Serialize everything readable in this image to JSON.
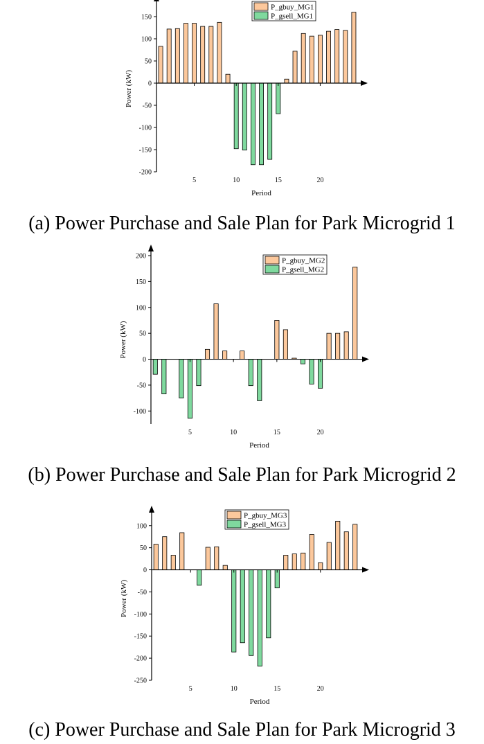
{
  "colors": {
    "buy": "#fcc89c",
    "sell": "#7fd99e",
    "stroke": "#000000"
  },
  "chart_data": [
    {
      "type": "bar",
      "caption": "(a) Power Purchase and Sale Plan for Park Microgrid 1",
      "xlabel": "Period",
      "ylabel": "Power (kW)",
      "xlim": [
        0.5,
        24.5
      ],
      "ylim": [
        -200,
        175
      ],
      "yticks": [
        150,
        100,
        50,
        0,
        -50,
        -100,
        -150,
        -200
      ],
      "xticks": [
        5,
        10,
        15,
        20
      ],
      "legend_position": "top-right",
      "x": [
        1,
        2,
        3,
        4,
        5,
        6,
        7,
        8,
        9,
        10,
        11,
        12,
        13,
        14,
        15,
        16,
        17,
        18,
        19,
        20,
        21,
        22,
        23,
        24
      ],
      "series": [
        {
          "name": "P_gbuy_MG1",
          "values": [
            83,
            122,
            123,
            135,
            135,
            128,
            128,
            137,
            20,
            0,
            0,
            0,
            0,
            0,
            0,
            9,
            72,
            112,
            106,
            108,
            117,
            121,
            119,
            160
          ]
        },
        {
          "name": "P_gsell_MG1",
          "values": [
            0,
            0,
            0,
            0,
            0,
            0,
            0,
            0,
            0,
            -148,
            -151,
            -184,
            -184,
            -172,
            -69,
            0,
            0,
            0,
            0,
            0,
            0,
            0,
            0,
            0
          ]
        }
      ]
    },
    {
      "type": "bar",
      "caption": "(b) Power Purchase and Sale Plan for Park Microgrid 2",
      "xlabel": "Period",
      "ylabel": "Power (kW)",
      "xlim": [
        0.5,
        24.5
      ],
      "ylim": [
        -125,
        200
      ],
      "yticks": [
        200,
        150,
        100,
        50,
        0,
        -50,
        -100
      ],
      "xticks": [
        5,
        10,
        15,
        20
      ],
      "legend_position": "top-right",
      "x": [
        1,
        2,
        3,
        4,
        5,
        6,
        7,
        8,
        9,
        10,
        11,
        12,
        13,
        14,
        15,
        16,
        17,
        18,
        19,
        20,
        21,
        22,
        23,
        24
      ],
      "series": [
        {
          "name": "P_gbuy_MG2",
          "values": [
            0,
            0,
            0,
            0,
            0,
            0,
            19,
            107,
            16,
            0,
            16,
            0,
            0,
            0,
            75,
            57,
            2,
            0,
            0,
            0,
            50,
            50,
            53,
            178
          ]
        },
        {
          "name": "P_gsell_MG2",
          "values": [
            -29,
            -67,
            0,
            -75,
            -114,
            -51,
            0,
            0,
            0,
            0,
            0,
            -51,
            -80,
            0,
            0,
            0,
            0,
            -9,
            -48,
            -56,
            0,
            0,
            0,
            0
          ]
        }
      ]
    },
    {
      "type": "bar",
      "caption": "(c) Power Purchase and Sale Plan for Park Microgrid 3",
      "xlabel": "Period",
      "ylabel": "Power (kW)",
      "xlim": [
        0.5,
        24.5
      ],
      "ylim": [
        -250,
        120
      ],
      "yticks": [
        100,
        50,
        0,
        -50,
        -100,
        -150,
        -200,
        -250
      ],
      "xticks": [
        5,
        10,
        15,
        20
      ],
      "legend_position": "top-center",
      "x": [
        1,
        2,
        3,
        4,
        5,
        6,
        7,
        8,
        9,
        10,
        11,
        12,
        13,
        14,
        15,
        16,
        17,
        18,
        19,
        20,
        21,
        22,
        23,
        24
      ],
      "series": [
        {
          "name": "P_gbuy_MG3",
          "values": [
            58,
            75,
            33,
            84,
            0,
            0,
            51,
            52,
            10,
            0,
            0,
            0,
            0,
            0,
            0,
            33,
            36,
            38,
            80,
            16,
            62,
            110,
            86,
            103
          ]
        },
        {
          "name": "P_gsell_MG3",
          "values": [
            0,
            0,
            0,
            0,
            0,
            -35,
            0,
            0,
            0,
            -186,
            -165,
            -194,
            -218,
            -154,
            -41,
            0,
            0,
            0,
            0,
            0,
            0,
            0,
            0,
            0
          ]
        }
      ]
    }
  ]
}
